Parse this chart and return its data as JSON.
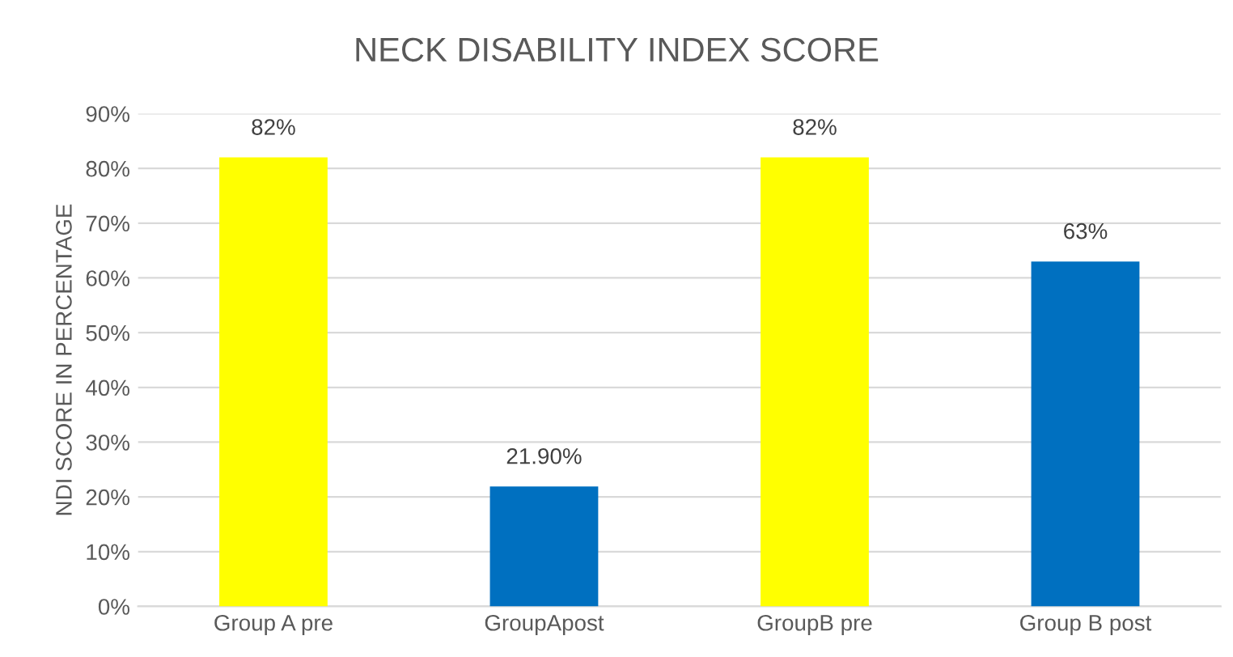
{
  "chart_data": {
    "type": "bar",
    "title": "NECK DISABILITY INDEX SCORE",
    "ylabel": "NDI SCORE IN PERCENTAGE",
    "categories": [
      "Group A pre",
      "GroupApost",
      "GroupB pre",
      "Group B post"
    ],
    "values": [
      82,
      21.9,
      82,
      63
    ],
    "colors": [
      "#ffff00",
      "#0070c0",
      "#ffff00",
      "#0070c0"
    ],
    "value_labels": [
      "82%",
      "21.90%",
      "82%",
      "63%"
    ],
    "ylim": [
      0,
      90
    ],
    "yticks": [
      {
        "value": 0,
        "label": "0%"
      },
      {
        "value": 10,
        "label": "10%"
      },
      {
        "value": 20,
        "label": "20%"
      },
      {
        "value": 30,
        "label": "30%"
      },
      {
        "value": 40,
        "label": "40%"
      },
      {
        "value": 50,
        "label": "50%"
      },
      {
        "value": 60,
        "label": "60%"
      },
      {
        "value": 70,
        "label": "70%"
      },
      {
        "value": 80,
        "label": "80%"
      },
      {
        "value": 90,
        "label": "90%"
      }
    ],
    "grid": "y",
    "legend": false
  }
}
